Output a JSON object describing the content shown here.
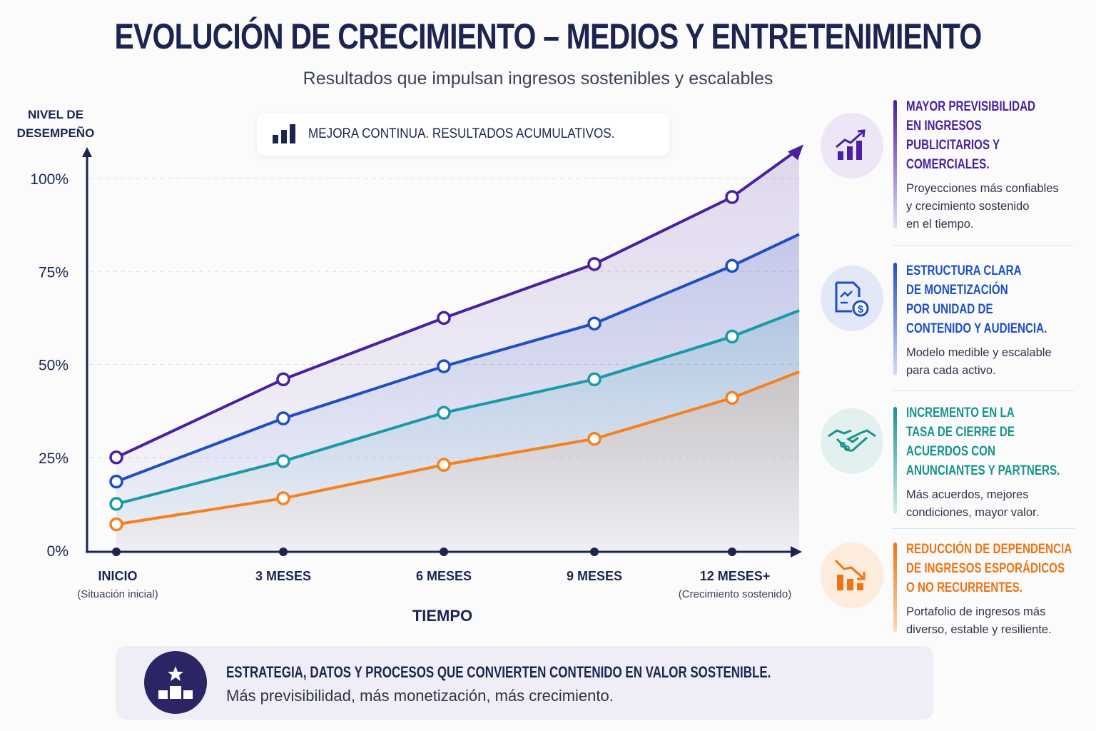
{
  "title": "EVOLUCIÓN DE CRECIMIENTO – MEDIOS Y ENTRETENIMIENTO",
  "subtitle": "Resultados que impulsan ingresos sostenibles y escalables",
  "badge": {
    "icon": "bar-chart-icon",
    "text": "MEJORA CONTINUA. RESULTADOS ACUMULATIVOS."
  },
  "chart_data": {
    "type": "line",
    "ylabel": "NIVEL DE DESEMPEÑO",
    "xlabel": "TIEMPO",
    "ylim": [
      0,
      100
    ],
    "yticks": [
      "0%",
      "25%",
      "50%",
      "75%",
      "100%"
    ],
    "grid": true,
    "categories": [
      "INICIO",
      "3 MESES",
      "6 MESES",
      "9 MESES",
      "12 MESES+"
    ],
    "category_notes": [
      "(Situación inicial)",
      "",
      "",
      "",
      "(Crecimiento sostenido)"
    ],
    "series": [
      {
        "color": "#4a1fa0",
        "values": [
          25,
          46,
          62.5,
          77,
          95
        ],
        "trend_end": 108
      },
      {
        "color": "#1d4fc4",
        "values": [
          18.5,
          35.5,
          49.5,
          61,
          76.5
        ],
        "trend_end": 85
      },
      {
        "color": "#1a9aa8",
        "values": [
          12.5,
          24,
          37,
          46,
          57.5
        ],
        "trend_end": 64.5
      },
      {
        "color": "#f7801e",
        "values": [
          7,
          14,
          23,
          30,
          41
        ],
        "trend_end": 48
      }
    ]
  },
  "benefits": [
    {
      "icon": "growth-chart-icon",
      "color": "#4a1fa0",
      "bg": "#ece6f7",
      "title": "MAYOR PREVISIBILIDAD\nEN INGRESOS\nPUBLICITARIOS Y\nCOMERCIALES.",
      "desc": "Proyecciones más confiables\ny crecimiento sostenido\nen el tiempo."
    },
    {
      "icon": "document-dollar-icon",
      "color": "#1d4fc4",
      "bg": "#e3e8f8",
      "title": "ESTRUCTURA CLARA\nDE MONETIZACIÓN\nPOR UNIDAD DE\nCONTENIDO Y AUDIENCIA.",
      "desc": "Modelo medible y escalable\npara cada activo."
    },
    {
      "icon": "handshake-icon",
      "color": "#16948a",
      "bg": "#e2f1ef",
      "title": "INCREMENTO EN LA\nTASA DE CIERRE DE\nACUERDOS CON\nANUNCIANTES Y PARTNERS.",
      "desc": "Más acuerdos, mejores\ncondiciones, mayor valor."
    },
    {
      "icon": "declining-chart-icon",
      "color": "#f07312",
      "bg": "#fdebdc",
      "title": "REDUCCIÓN DE DEPENDENCIA\nDE INGRESOS ESPORÁDICOS\nO NO RECURRENTES.",
      "desc": "Portafolio de ingresos más\ndiverso, estable y resiliente."
    }
  ],
  "footer": {
    "icon": "podium-star-icon",
    "title": "ESTRATEGIA, DATOS Y PROCESOS QUE CONVIERTEN CONTENIDO EN VALOR SOSTENIBLE.",
    "subtitle": "Más previsibilidad, más monetización, más crecimiento."
  }
}
